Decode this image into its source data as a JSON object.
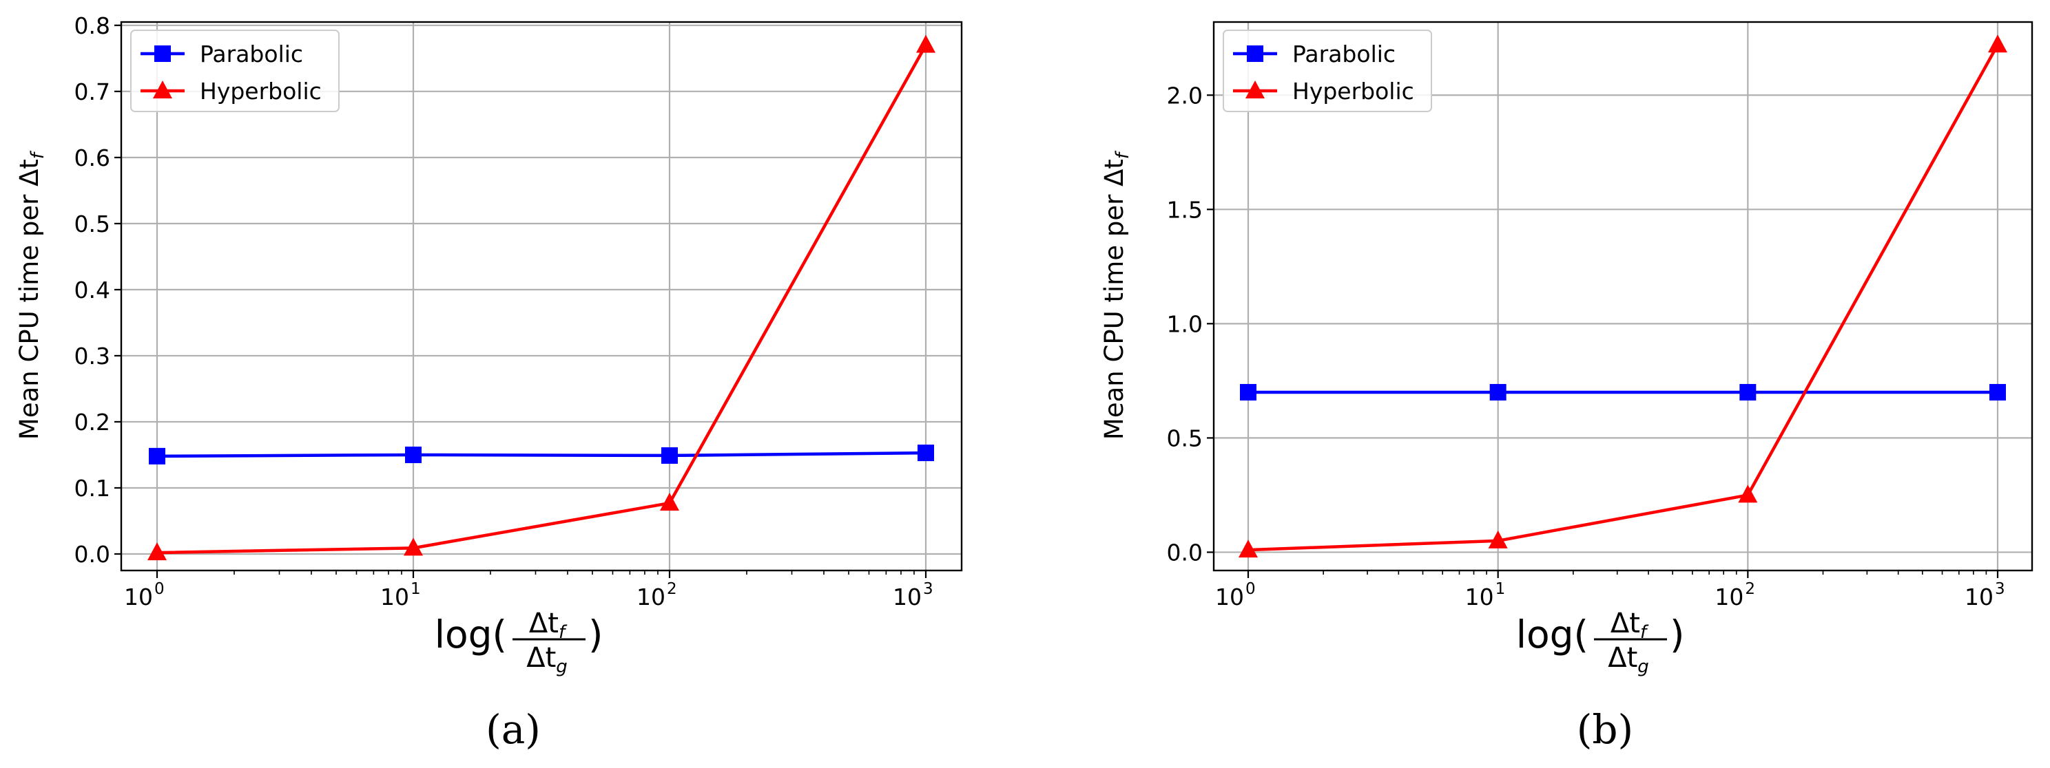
{
  "chart_data": [
    {
      "type": "line",
      "panel_label": "(a)",
      "x": [
        1,
        10,
        100,
        1000
      ],
      "x_scale": "log",
      "x_tick_base": "10",
      "x_tick_exponents": [
        "0",
        "1",
        "2",
        "3"
      ],
      "xlabel_prefix": "log(",
      "xlabel_num": "Δt",
      "xlabel_num_sub": "f",
      "xlabel_den": "Δt",
      "xlabel_den_sub": "g",
      "xlabel_suffix": ")",
      "ylabel": "Mean CPU time per Δt",
      "ylabel_sub": "f",
      "ylim": [
        -0.025,
        0.805
      ],
      "yticks": [
        "0.0",
        "0.1",
        "0.2",
        "0.3",
        "0.4",
        "0.5",
        "0.6",
        "0.7",
        "0.8"
      ],
      "grid": true,
      "legend_position": "upper-left",
      "series": [
        {
          "name": "Parabolic",
          "color": "#0000ff",
          "marker": "square",
          "values": [
            0.148,
            0.15,
            0.149,
            0.153
          ]
        },
        {
          "name": "Hyperbolic",
          "color": "#ff0000",
          "marker": "triangle",
          "values": [
            0.002,
            0.009,
            0.077,
            0.77
          ]
        }
      ]
    },
    {
      "type": "line",
      "panel_label": "(b)",
      "x": [
        1,
        10,
        100,
        1000
      ],
      "x_scale": "log",
      "x_tick_base": "10",
      "x_tick_exponents": [
        "0",
        "1",
        "2",
        "3"
      ],
      "xlabel_prefix": "log(",
      "xlabel_num": "Δt",
      "xlabel_num_sub": "f",
      "xlabel_den": "Δt",
      "xlabel_den_sub": "g",
      "xlabel_suffix": ")",
      "ylabel": "Mean CPU time per Δt",
      "ylabel_sub": "f",
      "ylim": [
        -0.08,
        2.32
      ],
      "yticks": [
        "0.0",
        "0.5",
        "1.0",
        "1.5",
        "2.0"
      ],
      "grid": true,
      "legend_position": "upper-left",
      "series": [
        {
          "name": "Parabolic",
          "color": "#0000ff",
          "marker": "square",
          "values": [
            0.7,
            0.7,
            0.7,
            0.7
          ]
        },
        {
          "name": "Hyperbolic",
          "color": "#ff0000",
          "marker": "triangle",
          "values": [
            0.01,
            0.05,
            0.25,
            2.22
          ]
        }
      ]
    }
  ]
}
